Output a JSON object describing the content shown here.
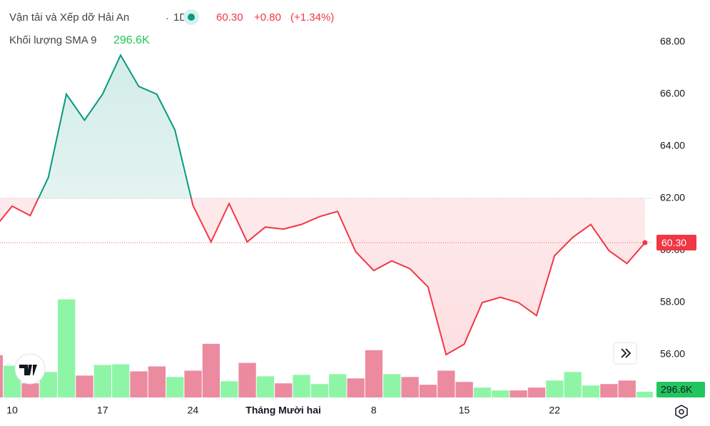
{
  "chart_data": {
    "type": "baseline",
    "title": "Vận tải và Xếp dỡ Hải An",
    "separator": "·",
    "interval": "1D",
    "price": "60.30",
    "change": "+0.80",
    "change_percent": "(+1.34%)",
    "volume_label": "Khối lượng SMA 9",
    "volume_value": "296.6K",
    "categories": [
      null,
      "10",
      null,
      null,
      null,
      null,
      "17",
      null,
      null,
      null,
      null,
      "24",
      null,
      null,
      null,
      null,
      "Tháng Mười hai",
      null,
      null,
      null,
      null,
      "8",
      null,
      null,
      null,
      null,
      "15",
      null,
      null,
      null,
      null,
      "22",
      null,
      null,
      null,
      null,
      null
    ],
    "values": [
      60.85,
      61.7,
      61.34,
      62.8,
      66.0,
      65.0,
      66.0,
      67.5,
      66.3,
      66.0,
      64.63,
      61.73,
      60.33,
      61.8,
      60.33,
      60.9,
      60.82,
      61.0,
      61.3,
      61.5,
      59.95,
      59.23,
      59.6,
      59.3,
      58.6,
      56.0,
      56.4,
      58.0,
      58.2,
      58.0,
      57.5,
      59.8,
      60.5,
      61.0,
      60.0,
      59.5,
      60.3
    ],
    "baseline": 62,
    "up_color": "#089981",
    "down_color": "#f23645",
    "ylim": [
      54.6,
      68.7
    ],
    "yticks": [
      {
        "value": 56,
        "label": "56.00"
      },
      {
        "value": 58,
        "label": "58.00"
      },
      {
        "value": 60,
        "label": "60.00"
      },
      {
        "value": 62,
        "label": "62.00"
      },
      {
        "value": 64,
        "label": "64.00"
      },
      {
        "value": 66,
        "label": "66.00"
      },
      {
        "value": 68,
        "label": "68.00"
      }
    ],
    "volume": {
      "values": [
        2220,
        1665,
        740,
        1332,
        5143,
        1147,
        1702,
        1739,
        1369,
        1628,
        1073,
        1406,
        2812,
        851,
        1813,
        1110,
        740,
        1184,
        703,
        1221,
        999,
        2479,
        1221,
        1073,
        666,
        1406,
        814,
        518,
        370,
        370,
        518,
        888,
        1332,
        629,
        703,
        888,
        296.6
      ],
      "colors": [
        "down",
        "up",
        "down",
        "up",
        "up",
        "down",
        "up",
        "up",
        "down",
        "down",
        "up",
        "down",
        "down",
        "up",
        "down",
        "up",
        "down",
        "up",
        "up",
        "up",
        "down",
        "down",
        "up",
        "down",
        "down",
        "down",
        "down",
        "up",
        "up",
        "down",
        "down",
        "up",
        "up",
        "up",
        "down",
        "down",
        "up"
      ],
      "up_color": "#8ff5a6",
      "down_color": "#ec8aa0",
      "ylim": [
        0,
        5500
      ]
    }
  }
}
